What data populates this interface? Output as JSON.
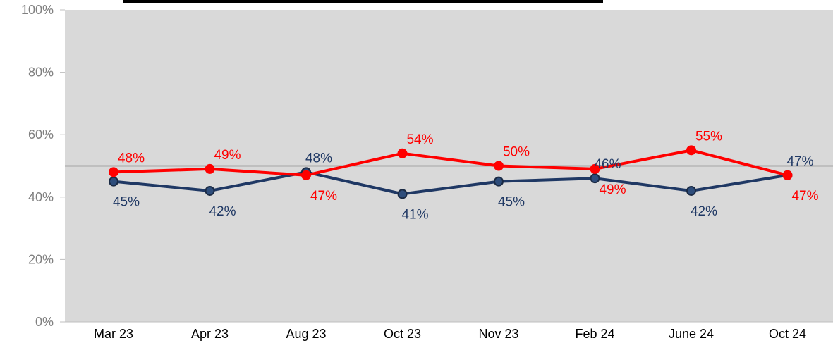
{
  "chart_data": {
    "type": "line",
    "title": "",
    "xlabel": "",
    "ylabel": "",
    "categories": [
      "Mar 23",
      "Apr 23",
      "Aug 23",
      "Oct 23",
      "Nov 23",
      "Feb 24",
      "June 24",
      "Oct 24"
    ],
    "ylim": [
      0,
      100
    ],
    "yticks": [
      "0%",
      "20%",
      "40%",
      "60%",
      "80%",
      "100%"
    ],
    "reference_line": 50,
    "grid": false,
    "legend": "none",
    "series": [
      {
        "color": "#1f3864",
        "values": [
          45,
          42,
          48,
          41,
          45,
          46,
          42,
          47
        ],
        "labels": [
          "45%",
          "42%",
          "48%",
          "41%",
          "45%",
          "46%",
          "42%",
          "47%"
        ],
        "label_pos": [
          "below",
          "below",
          "above",
          "below",
          "below",
          "above",
          "below",
          "above"
        ]
      },
      {
        "color": "#ff0000",
        "values": [
          48,
          49,
          47,
          54,
          50,
          49,
          55,
          47
        ],
        "labels": [
          "48%",
          "49%",
          "47%",
          "54%",
          "50%",
          "49%",
          "55%",
          "47%"
        ],
        "label_pos": [
          "above",
          "above",
          "below",
          "above",
          "above",
          "below",
          "above",
          "below"
        ]
      }
    ],
    "colors": {
      "plot_background": "#d9d9d9",
      "reference_line": "#bfbfbf",
      "title_bar": "#000000"
    }
  }
}
